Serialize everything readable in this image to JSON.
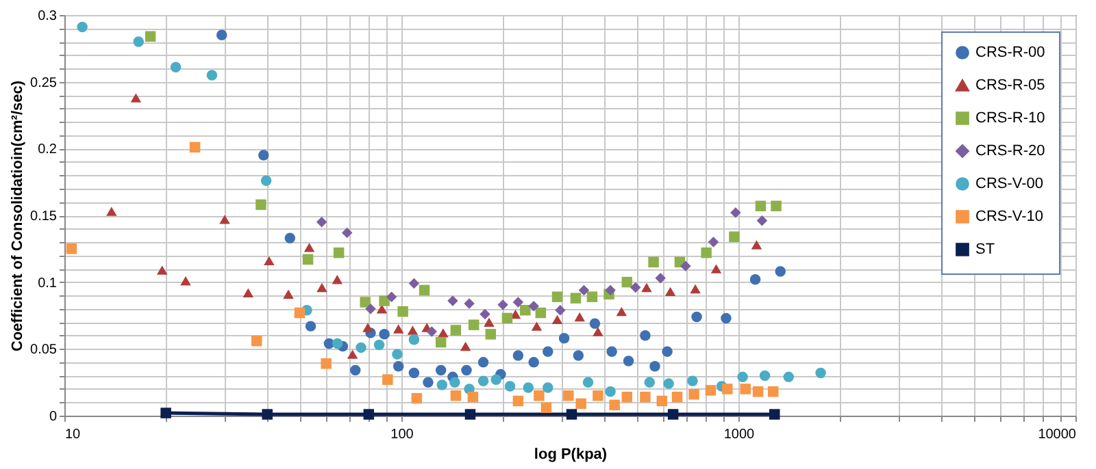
{
  "chart_data": {
    "type": "scatter",
    "xlabel": "log P(kpa)",
    "ylabel": "Coefficient of Consolidatioin(cm²/sec)",
    "log": "x",
    "grid": true,
    "legend": "top right",
    "xlim": [
      10,
      10000
    ],
    "ylim": [
      0,
      0.3
    ],
    "xticks": [
      10,
      {
        "value": 20,
        "label": null
      },
      {
        "value": 30,
        "label": null
      },
      {
        "value": 40,
        "label": null
      },
      {
        "value": 50,
        "label": null
      },
      {
        "value": 60,
        "label": null
      },
      {
        "value": 70,
        "label": null
      },
      {
        "value": 80,
        "label": null
      },
      {
        "value": 90,
        "label": null
      },
      100,
      {
        "value": 200,
        "label": null
      },
      {
        "value": 300,
        "label": null
      },
      {
        "value": 400,
        "label": null
      },
      {
        "value": 500,
        "label": null
      },
      {
        "value": 600,
        "label": null
      },
      {
        "value": 700,
        "label": null
      },
      {
        "value": 800,
        "label": null
      },
      {
        "value": 900,
        "label": null
      },
      1000,
      {
        "value": 2000,
        "label": null
      },
      {
        "value": 3000,
        "label": null
      },
      {
        "value": 4000,
        "label": null
      },
      {
        "value": 5000,
        "label": null
      },
      {
        "value": 6000,
        "label": null
      },
      {
        "value": 7000,
        "label": null
      },
      {
        "value": 8000,
        "label": null
      },
      {
        "value": 9000,
        "label": null
      },
      10000
    ],
    "yticks": [
      0,
      {
        "value": 0.01,
        "label": null
      },
      {
        "value": 0.02,
        "label": null
      },
      {
        "value": 0.03,
        "label": null
      },
      {
        "value": 0.04,
        "label": null
      },
      0.05,
      {
        "value": 0.06,
        "label": null
      },
      {
        "value": 0.07,
        "label": null
      },
      {
        "value": 0.08,
        "label": null
      },
      {
        "value": 0.09,
        "label": null
      },
      0.1,
      {
        "value": 0.11,
        "label": null
      },
      {
        "value": 0.12,
        "label": null
      },
      {
        "value": 0.13,
        "label": null
      },
      {
        "value": 0.14,
        "label": null
      },
      0.15,
      {
        "value": 0.16,
        "label": null
      },
      {
        "value": 0.17,
        "label": null
      },
      {
        "value": 0.18,
        "label": null
      },
      {
        "value": 0.19,
        "label": null
      },
      0.2,
      {
        "value": 0.21,
        "label": null
      },
      {
        "value": 0.22,
        "label": null
      },
      {
        "value": 0.23,
        "label": null
      },
      {
        "value": 0.24,
        "label": null
      },
      0.25,
      {
        "value": 0.26,
        "label": null
      },
      {
        "value": 0.27,
        "label": null
      },
      {
        "value": 0.28,
        "label": null
      },
      {
        "value": 0.29,
        "label": null
      },
      0.3
    ],
    "series": [
      {
        "name": "CRS-R-00",
        "color": "#3f70b2",
        "marker": "circle",
        "x": [
          29.3,
          39,
          46.7,
          53.8,
          61,
          67,
          73,
          81,
          89,
          98,
          109,
          120,
          131,
          142,
          156,
          175,
          197,
          222,
          247,
          272,
          304,
          335,
          375,
          421,
          472,
          529,
          565,
          615,
          752,
          919,
          1122,
          1332
        ],
        "values": [
          0.285,
          0.195,
          0.133,
          0.067,
          0.054,
          0.052,
          0.034,
          0.062,
          0.061,
          0.037,
          0.032,
          0.025,
          0.034,
          0.029,
          0.034,
          0.04,
          0.031,
          0.045,
          0.04,
          0.048,
          0.058,
          0.045,
          0.069,
          0.048,
          0.041,
          0.06,
          0.037,
          0.048,
          0.074,
          0.073,
          0.102,
          0.108
        ]
      },
      {
        "name": "CRS-R-05",
        "color": "#b03c3a",
        "marker": "triangle",
        "x": [
          13.8,
          16.3,
          19.5,
          22.9,
          29.9,
          35.1,
          40.5,
          46.2,
          53.3,
          58.1,
          64.5,
          71.6,
          79.5,
          87.5,
          98,
          108,
          119,
          133,
          155,
          182,
          218,
          252,
          290,
          338,
          383,
          450,
          534,
          628,
          745,
          859,
          1132
        ],
        "values": [
          0.153,
          0.238,
          0.109,
          0.101,
          0.147,
          0.092,
          0.116,
          0.091,
          0.126,
          0.096,
          0.102,
          0.046,
          0.066,
          0.08,
          0.065,
          0.064,
          0.066,
          0.062,
          0.052,
          0.07,
          0.076,
          0.067,
          0.072,
          0.074,
          0.063,
          0.078,
          0.096,
          0.093,
          0.095,
          0.11,
          0.128
        ]
      },
      {
        "name": "CRS-R-10",
        "color": "#8db14a",
        "marker": "square",
        "x": [
          18,
          38.3,
          52.8,
          65.2,
          78.1,
          89,
          101,
          117,
          131,
          145,
          164,
          184,
          206,
          233,
          259,
          290,
          329,
          368,
          413,
          467,
          560,
          670,
          803,
          972,
          1164,
          1294
        ],
        "values": [
          0.284,
          0.158,
          0.117,
          0.122,
          0.085,
          0.086,
          0.078,
          0.094,
          0.055,
          0.064,
          0.068,
          0.061,
          0.073,
          0.079,
          0.077,
          0.089,
          0.088,
          0.089,
          0.091,
          0.1,
          0.115,
          0.115,
          0.122,
          0.134,
          0.157,
          0.157
        ]
      },
      {
        "name": "CRS-R-20",
        "color": "#7b5ea0",
        "marker": "diamond",
        "x": [
          58,
          69,
          81,
          93.5,
          109,
          123,
          142,
          159,
          177,
          200,
          222,
          247,
          296,
          348,
          417,
          495,
          587,
          697,
          843,
          981,
          1175
        ],
        "values": [
          0.145,
          0.137,
          0.08,
          0.089,
          0.099,
          0.063,
          0.086,
          0.084,
          0.076,
          0.083,
          0.085,
          0.082,
          0.079,
          0.094,
          0.094,
          0.096,
          0.103,
          0.112,
          0.13,
          0.152,
          0.146
        ]
      },
      {
        "name": "CRS-V-00",
        "color": "#4bacc6",
        "marker": "circle",
        "x": [
          11.3,
          16.6,
          21.4,
          27.4,
          39.7,
          52.4,
          64.6,
          75.9,
          85.9,
          97.2,
          109,
          132,
          144,
          159,
          175,
          191,
          210,
          238,
          272,
          358,
          417,
          545,
          621,
          731,
          892,
          1029,
          1198,
          1409,
          1754
        ],
        "values": [
          0.291,
          0.28,
          0.261,
          0.255,
          0.176,
          0.079,
          0.054,
          0.051,
          0.053,
          0.046,
          0.057,
          0.023,
          0.025,
          0.02,
          0.026,
          0.027,
          0.022,
          0.021,
          0.021,
          0.025,
          0.018,
          0.025,
          0.024,
          0.026,
          0.022,
          0.029,
          0.03,
          0.029,
          0.032
        ]
      },
      {
        "name": "CRS-V-10",
        "color": "#f79646",
        "marker": "square",
        "x": [
          10.5,
          24.4,
          37.2,
          49.9,
          59.8,
          91,
          111,
          145,
          163,
          222,
          256,
          269,
          313,
          341,
          383,
          429,
          467,
          529,
          593,
          658,
          738,
          827,
          927,
          1049,
          1143,
          1268
        ],
        "values": [
          0.125,
          0.201,
          0.056,
          0.077,
          0.039,
          0.027,
          0.013,
          0.015,
          0.014,
          0.011,
          0.015,
          0.006,
          0.015,
          0.009,
          0.015,
          0.008,
          0.014,
          0.014,
          0.011,
          0.014,
          0.016,
          0.019,
          0.02,
          0.02,
          0.018,
          0.018
        ]
      },
      {
        "name": "ST",
        "type": "line",
        "color": "#0b1f4f",
        "marker": "square",
        "x": [
          20,
          40,
          80,
          160,
          320,
          640,
          1280
        ],
        "values": [
          0.002,
          0.001,
          0.001,
          0.001,
          0.001,
          0.001,
          0.001
        ]
      }
    ]
  }
}
